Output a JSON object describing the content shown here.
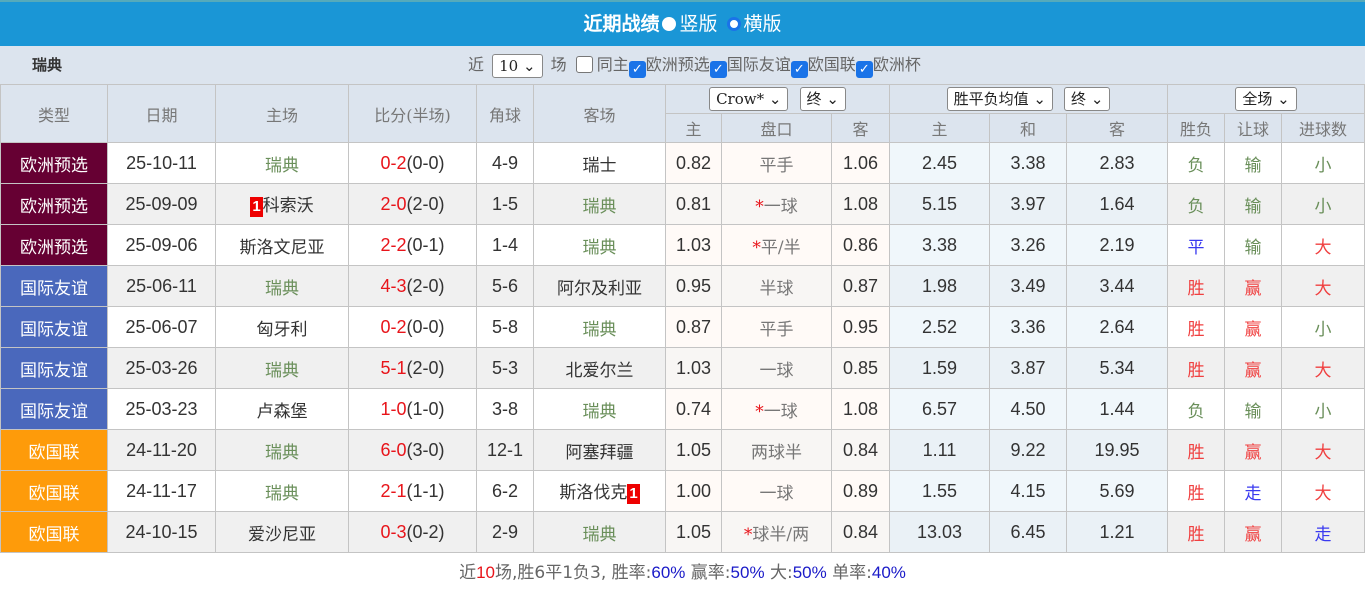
{
  "header": {
    "title": "近期战绩",
    "option_vertical": "竖版",
    "option_horizontal": "横版"
  },
  "filter": {
    "team": "瑞典",
    "prefix": "近",
    "count": "10",
    "suffix": "场",
    "same_home": "同主",
    "same_home_checked": false,
    "competitions": [
      {
        "label": "欧洲预选",
        "checked": true
      },
      {
        "label": "国际友谊",
        "checked": true
      },
      {
        "label": "欧国联",
        "checked": true
      },
      {
        "label": "欧洲杯",
        "checked": true
      }
    ]
  },
  "table": {
    "headers": {
      "type": "类型",
      "date": "日期",
      "home": "主场",
      "score": "比分(半场)",
      "corner": "角球",
      "away": "客场",
      "company": "Crow*",
      "odds_state": "终",
      "euro_type": "胜平负均值",
      "euro_state": "终",
      "period": "全场",
      "sub": [
        "主",
        "盘口",
        "客",
        "主",
        "和",
        "客",
        "胜负",
        "让球",
        "进球数"
      ]
    },
    "type_colors": {
      "欧洲预选": "#660033",
      "国际友谊": "#4a68bc",
      "欧国联": "#fe9b0a"
    },
    "result_colors": {
      "green": "#6a8f5a",
      "red": "#f04040",
      "blue": "#3a3af0"
    },
    "rows": [
      {
        "type": "欧洲预选",
        "date": "25-10-11",
        "home": "瑞典",
        "home_red": "",
        "score": "0-2",
        "half": "(0-0)",
        "corner": "4-9",
        "away": "瑞士",
        "away_red": "",
        "ah_home": "0.82",
        "line": "平手",
        "line_star": "",
        "ah_away": "1.06",
        "eu_h": "2.45",
        "eu_d": "3.38",
        "eu_a": "2.83",
        "wdl": "负",
        "ah_res": "输",
        "ou": "小"
      },
      {
        "type": "欧洲预选",
        "date": "25-09-09",
        "home": "科索沃",
        "home_red": "1",
        "score": "2-0",
        "half": "(2-0)",
        "corner": "1-5",
        "away": "瑞典",
        "away_red": "",
        "ah_home": "0.81",
        "line": "一球",
        "line_star": "*",
        "ah_away": "1.08",
        "eu_h": "5.15",
        "eu_d": "3.97",
        "eu_a": "1.64",
        "wdl": "负",
        "ah_res": "输",
        "ou": "小"
      },
      {
        "type": "欧洲预选",
        "date": "25-09-06",
        "home": "斯洛文尼亚",
        "home_red": "",
        "score": "2-2",
        "half": "(0-1)",
        "corner": "1-4",
        "away": "瑞典",
        "away_red": "",
        "ah_home": "1.03",
        "line": "平/半",
        "line_star": "*",
        "ah_away": "0.86",
        "eu_h": "3.38",
        "eu_d": "3.26",
        "eu_a": "2.19",
        "wdl": "平",
        "ah_res": "输",
        "ou": "大"
      },
      {
        "type": "国际友谊",
        "date": "25-06-11",
        "home": "瑞典",
        "home_red": "",
        "score": "4-3",
        "half": "(2-0)",
        "corner": "5-6",
        "away": "阿尔及利亚",
        "away_red": "",
        "ah_home": "0.95",
        "line": "半球",
        "line_star": "",
        "ah_away": "0.87",
        "eu_h": "1.98",
        "eu_d": "3.49",
        "eu_a": "3.44",
        "wdl": "胜",
        "ah_res": "赢",
        "ou": "大"
      },
      {
        "type": "国际友谊",
        "date": "25-06-07",
        "home": "匈牙利",
        "home_red": "",
        "score": "0-2",
        "half": "(0-0)",
        "corner": "5-8",
        "away": "瑞典",
        "away_red": "",
        "ah_home": "0.87",
        "line": "平手",
        "line_star": "",
        "ah_away": "0.95",
        "eu_h": "2.52",
        "eu_d": "3.36",
        "eu_a": "2.64",
        "wdl": "胜",
        "ah_res": "赢",
        "ou": "小"
      },
      {
        "type": "国际友谊",
        "date": "25-03-26",
        "home": "瑞典",
        "home_red": "",
        "score": "5-1",
        "half": "(2-0)",
        "corner": "5-3",
        "away": "北爱尔兰",
        "away_red": "",
        "ah_home": "1.03",
        "line": "一球",
        "line_star": "",
        "ah_away": "0.85",
        "eu_h": "1.59",
        "eu_d": "3.87",
        "eu_a": "5.34",
        "wdl": "胜",
        "ah_res": "赢",
        "ou": "大"
      },
      {
        "type": "国际友谊",
        "date": "25-03-23",
        "home": "卢森堡",
        "home_red": "",
        "score": "1-0",
        "half": "(1-0)",
        "corner": "3-8",
        "away": "瑞典",
        "away_red": "",
        "ah_home": "0.74",
        "line": "一球",
        "line_star": "*",
        "ah_away": "1.08",
        "eu_h": "6.57",
        "eu_d": "4.50",
        "eu_a": "1.44",
        "wdl": "负",
        "ah_res": "输",
        "ou": "小"
      },
      {
        "type": "欧国联",
        "date": "24-11-20",
        "home": "瑞典",
        "home_red": "",
        "score": "6-0",
        "half": "(3-0)",
        "corner": "12-1",
        "away": "阿塞拜疆",
        "away_red": "",
        "ah_home": "1.05",
        "line": "两球半",
        "line_star": "",
        "ah_away": "0.84",
        "eu_h": "1.11",
        "eu_d": "9.22",
        "eu_a": "19.95",
        "wdl": "胜",
        "ah_res": "赢",
        "ou": "大"
      },
      {
        "type": "欧国联",
        "date": "24-11-17",
        "home": "瑞典",
        "home_red": "",
        "score": "2-1",
        "half": "(1-1)",
        "corner": "6-2",
        "away": "斯洛伐克",
        "away_red": "1",
        "ah_home": "1.00",
        "line": "一球",
        "line_star": "",
        "ah_away": "0.89",
        "eu_h": "1.55",
        "eu_d": "4.15",
        "eu_a": "5.69",
        "wdl": "胜",
        "ah_res": "走",
        "ou": "大"
      },
      {
        "type": "欧国联",
        "date": "24-10-15",
        "home": "爱沙尼亚",
        "home_red": "",
        "score": "0-3",
        "half": "(0-2)",
        "corner": "2-9",
        "away": "瑞典",
        "away_red": "",
        "ah_home": "1.05",
        "line": "球半/两",
        "line_star": "*",
        "ah_away": "0.84",
        "eu_h": "13.03",
        "eu_d": "6.45",
        "eu_a": "1.21",
        "wdl": "胜",
        "ah_res": "赢",
        "ou": "走"
      }
    ]
  },
  "summary": {
    "p1": "近",
    "n": "10",
    "p2": "场,胜6平1负3, 胜率:",
    "win_rate": "60%",
    "p3": " 赢率:",
    "ah_rate": "50%",
    "p4": " 大:",
    "over_rate": "50%",
    "p5": " 单率:",
    "odd_rate": "40%"
  }
}
